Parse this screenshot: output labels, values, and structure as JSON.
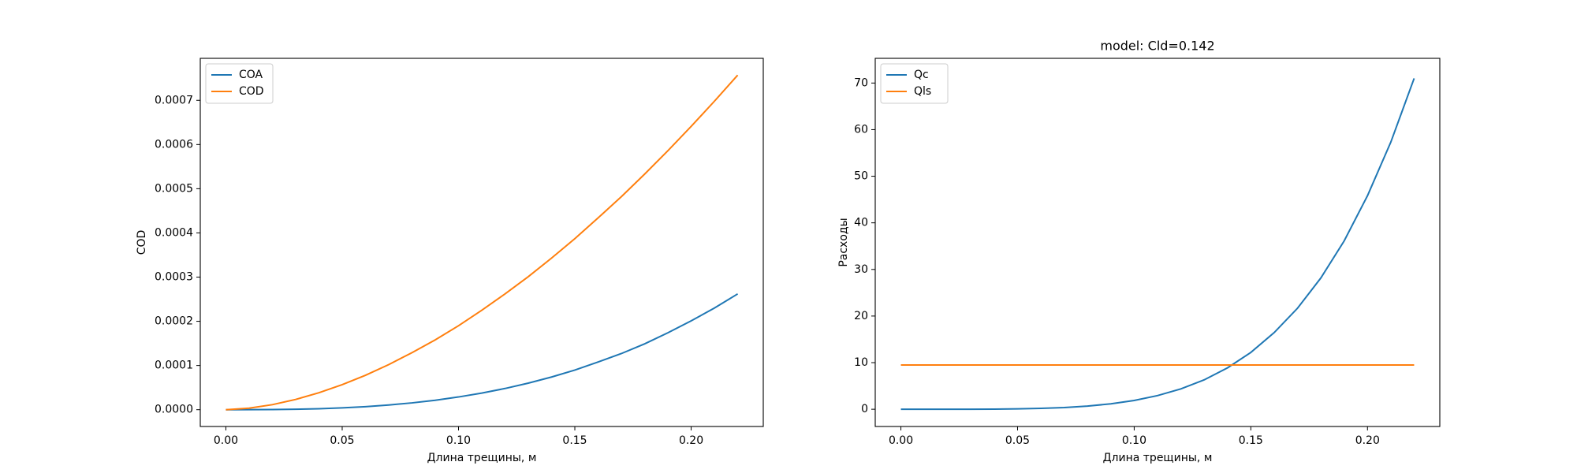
{
  "chart_data": [
    {
      "type": "line",
      "xlabel": "Длина трещины, м",
      "ylabel": "COD",
      "legend": "upper left",
      "x": [
        0,
        0.01,
        0.02,
        0.03,
        0.04,
        0.05,
        0.06,
        0.07,
        0.08,
        0.09,
        0.1,
        0.11,
        0.12,
        0.13,
        0.14,
        0.15,
        0.16,
        0.17,
        0.18,
        0.19,
        0.2,
        0.21,
        0.22
      ],
      "series": [
        {
          "name": "COA",
          "color": "#1f77b4",
          "values": [
            0,
            5e-08,
            3.2e-07,
            9.9e-07,
            2.2e-06,
            4.1e-06,
            6.9e-06,
            1.06e-05,
            1.54e-05,
            2.14e-05,
            2.88e-05,
            3.76e-05,
            4.8e-05,
            6.01e-05,
            7.39e-05,
            8.97e-05,
            0.000108,
            0.000127,
            0.000149,
            0.000174,
            0.000201,
            0.00023,
            0.000262
          ]
        },
        {
          "name": "COD",
          "color": "#ff7f0e",
          "values": [
            0,
            3.4e-06,
            1.14e-05,
            2.32e-05,
            3.83e-05,
            5.66e-05,
            7.79e-05,
            0.000102,
            0.000129,
            0.000158,
            0.00019,
            0.000225,
            0.000262,
            0.000301,
            0.000343,
            0.000387,
            0.000434,
            0.000482,
            0.000533,
            0.000586,
            0.000641,
            0.000698,
            0.000757
          ]
        }
      ],
      "xlim": [
        -0.011,
        0.231
      ],
      "ylim": [
        -3.8e-05,
        0.000795
      ],
      "xticks": [
        {
          "value": 0,
          "label": "0.00"
        },
        {
          "value": 0.05,
          "label": "0.05"
        },
        {
          "value": 0.1,
          "label": "0.10"
        },
        {
          "value": 0.15,
          "label": "0.15"
        },
        {
          "value": 0.2,
          "label": "0.20"
        }
      ],
      "yticks": [
        {
          "value": 0,
          "label": "0.0000"
        },
        {
          "value": 0.0001,
          "label": "0.0001"
        },
        {
          "value": 0.0002,
          "label": "0.0002"
        },
        {
          "value": 0.0003,
          "label": "0.0003"
        },
        {
          "value": 0.0004,
          "label": "0.0004"
        },
        {
          "value": 0.0005,
          "label": "0.0005"
        },
        {
          "value": 0.0006,
          "label": "0.0006"
        },
        {
          "value": 0.0007,
          "label": "0.0007"
        }
      ]
    },
    {
      "type": "line",
      "title": "model: Cld=0.142",
      "xlabel": "Длина трещины, м",
      "ylabel": "Расходы",
      "legend": "upper left",
      "x": [
        0,
        0.01,
        0.02,
        0.03,
        0.04,
        0.05,
        0.06,
        0.07,
        0.08,
        0.09,
        0.1,
        0.11,
        0.12,
        0.13,
        0.14,
        0.15,
        0.16,
        0.17,
        0.18,
        0.19,
        0.2,
        0.21,
        0.22
      ],
      "series": [
        {
          "name": "Qc",
          "color": "#1f77b4",
          "values": [
            0,
            0,
            0.0011,
            0.0075,
            0.028,
            0.078,
            0.18,
            0.37,
            0.68,
            1.16,
            1.89,
            2.93,
            4.36,
            6.31,
            8.88,
            12.19,
            16.44,
            21.67,
            28.16,
            36.12,
            45.82,
            57.32,
            71
          ]
        },
        {
          "name": "Qls",
          "color": "#ff7f0e",
          "values": [
            9.5,
            9.5,
            9.5,
            9.5,
            9.5,
            9.5,
            9.5,
            9.5,
            9.5,
            9.5,
            9.5,
            9.5,
            9.5,
            9.5,
            9.5,
            9.5,
            9.5,
            9.5,
            9.5,
            9.5,
            9.5,
            9.5,
            9.5
          ]
        }
      ],
      "xlim": [
        -0.011,
        0.231
      ],
      "ylim": [
        -3.7,
        75.3
      ],
      "xticks": [
        {
          "value": 0,
          "label": "0.00"
        },
        {
          "value": 0.05,
          "label": "0.05"
        },
        {
          "value": 0.1,
          "label": "0.10"
        },
        {
          "value": 0.15,
          "label": "0.15"
        },
        {
          "value": 0.2,
          "label": "0.20"
        }
      ],
      "yticks": [
        0,
        10,
        20,
        30,
        40,
        50,
        60,
        70
      ]
    }
  ]
}
